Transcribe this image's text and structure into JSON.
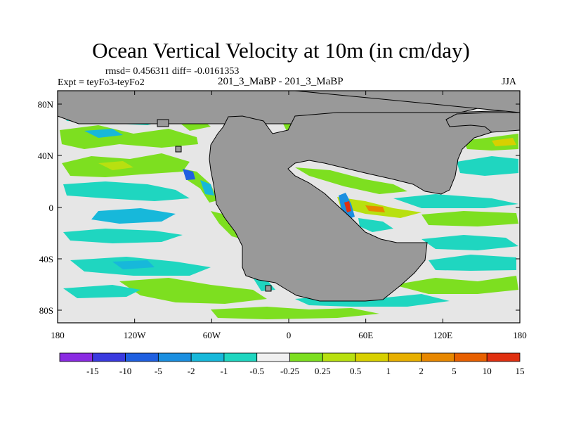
{
  "title": "Ocean Vertical Velocity at 10m (in cm/day)",
  "stats_line": "rmsd= 0.456311 diff= -0.0161353",
  "experiment": "Expt = teyFo3-teyFo2",
  "case_label": "201_3_MaBP - 201_3_MaBP",
  "season": "JJA",
  "map": {
    "land_color": "#999999",
    "ocean_background": "#e6e6e6",
    "y_ticks": [
      "80N",
      "40N",
      "0",
      "40S",
      "80S"
    ],
    "x_ticks": [
      "180",
      "120W",
      "60W",
      "0",
      "60E",
      "120E",
      "180"
    ]
  },
  "colorbar": {
    "colors": [
      "#8a2be2",
      "#3a3adf",
      "#1f5fe0",
      "#1b8fe0",
      "#17b8da",
      "#1fd6c0",
      "#f0f0f0",
      "#7ddf20",
      "#b8e010",
      "#d8d000",
      "#e8b000",
      "#e88800",
      "#e86000",
      "#e03010"
    ],
    "labels": [
      "-15",
      "-10",
      "-5",
      "-2",
      "-1",
      "-0.5",
      "-0.25",
      "0.25",
      "0.5",
      "1",
      "2",
      "5",
      "10",
      "15"
    ]
  }
}
